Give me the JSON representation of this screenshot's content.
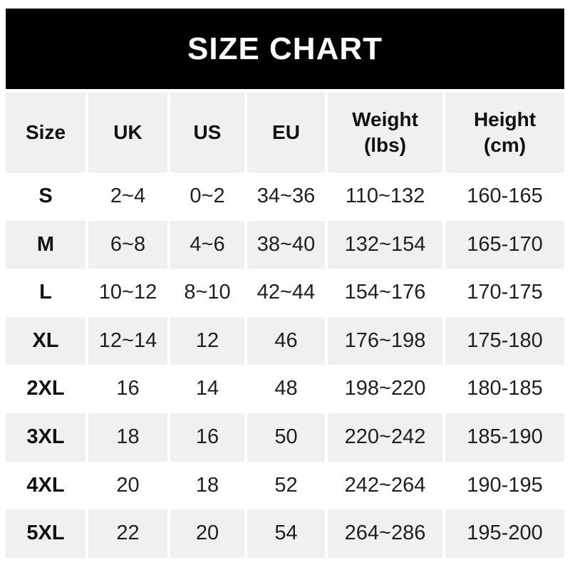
{
  "banner": {
    "title": "SIZE CHART"
  },
  "chart_data": {
    "type": "table",
    "title": "SIZE CHART",
    "columns": [
      "Size",
      "UK",
      "US",
      "EU",
      "Weight\n(lbs)",
      "Height\n(cm)"
    ],
    "rows": [
      [
        "S",
        "2~4",
        "0~2",
        "34~36",
        "110~132",
        "160-165"
      ],
      [
        "M",
        "6~8",
        "4~6",
        "38~40",
        "132~154",
        "165-170"
      ],
      [
        "L",
        "10~12",
        "8~10",
        "42~44",
        "154~176",
        "170-175"
      ],
      [
        "XL",
        "12~14",
        "12",
        "46",
        "176~198",
        "175-180"
      ],
      [
        "2XL",
        "16",
        "14",
        "48",
        "198~220",
        "180-185"
      ],
      [
        "3XL",
        "18",
        "16",
        "50",
        "220~242",
        "185-190"
      ],
      [
        "4XL",
        "20",
        "18",
        "52",
        "242~264",
        "190-195"
      ],
      [
        "5XL",
        "22",
        "20",
        "54",
        "264~286",
        "195-200"
      ]
    ],
    "layout": {
      "striping": "alternating rows, header and even data rows shaded",
      "range_separator_weight": "~",
      "range_separator_height": "-"
    }
  },
  "colors": {
    "banner_bg": "#000000",
    "banner_text": "#ffffff",
    "stripe": "#f0f0f0",
    "row_bg": "#ffffff",
    "text": "#1f1f1f"
  }
}
